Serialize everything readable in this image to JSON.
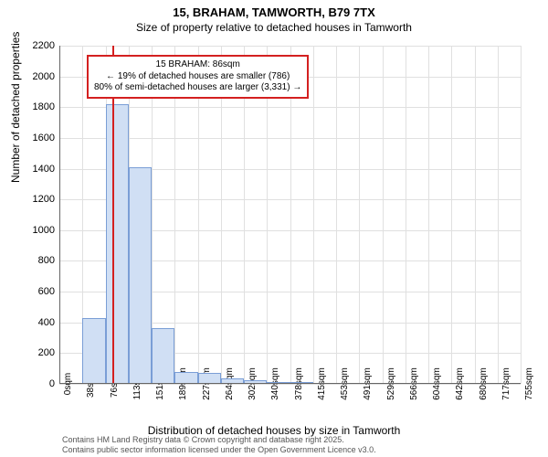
{
  "title": "15, BRAHAM, TAMWORTH, B79 7TX",
  "subtitle": "Size of property relative to detached houses in Tamworth",
  "ylabel": "Number of detached properties",
  "xlabel": "Distribution of detached houses by size in Tamworth",
  "attribution_line1": "Contains HM Land Registry data © Crown copyright and database right 2025.",
  "attribution_line2": "Contains public sector information licensed under the Open Government Licence v3.0.",
  "chart": {
    "type": "histogram",
    "ylim": [
      0,
      2200
    ],
    "ytick_step": 200,
    "xtick_labels": [
      "0sqm",
      "38sqm",
      "76sqm",
      "113sqm",
      "151sqm",
      "189sqm",
      "227sqm",
      "264sqm",
      "302sqm",
      "340sqm",
      "378sqm",
      "415sqm",
      "453sqm",
      "491sqm",
      "529sqm",
      "566sqm",
      "604sqm",
      "642sqm",
      "680sqm",
      "717sqm",
      "755sqm"
    ],
    "bar_values": [
      0,
      430,
      1820,
      1410,
      360,
      80,
      70,
      35,
      25,
      10,
      5,
      0,
      0,
      0,
      0,
      0,
      0,
      0,
      0,
      0
    ],
    "bar_fill": "#d0dff4",
    "bar_stroke": "#7a9ed6",
    "grid_color": "#e0e0e0",
    "background": "#ffffff",
    "marker_x_sqm": 86,
    "marker_color": "#d42020",
    "x_max_sqm": 755,
    "annotation": {
      "line1": "15 BRAHAM: 86sqm",
      "line2": "← 19% of detached houses are smaller (786)",
      "line3": "80% of semi-detached houses are larger (3,331) →"
    },
    "title_fontsize": 13,
    "label_fontsize": 12,
    "tick_fontsize": 11
  }
}
